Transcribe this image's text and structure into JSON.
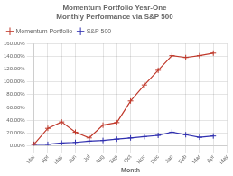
{
  "chart_data": {
    "type": "line",
    "title": "Momentum Portfolio Year-One Monthly Performance via S&P 500",
    "xlabel": "Month",
    "categories": [
      "Mar",
      "Apr",
      "May",
      "Jun",
      "Jul",
      "Aug",
      "Sep",
      "Oct",
      "Nov",
      "Dec",
      "Jan",
      "Feb",
      "Mar",
      "Apr",
      "May"
    ],
    "series": [
      {
        "name": "Momentum Portfolio",
        "color": "#c0392b",
        "marker": "plus",
        "values": [
          2,
          27,
          37,
          21,
          12,
          32,
          36,
          70,
          95,
          118,
          141,
          138,
          141,
          145,
          null
        ]
      },
      {
        "name": "S&P 500",
        "color": "#3030b0",
        "marker": "plus",
        "values": [
          2,
          2,
          4,
          5,
          7,
          8,
          10,
          12,
          14,
          16,
          21,
          17,
          13,
          15,
          null
        ]
      }
    ],
    "ylim": [
      0,
      160
    ],
    "yticks": [
      {
        "value": 0,
        "label": "0.00%"
      },
      {
        "value": 20,
        "label": "20.00%"
      },
      {
        "value": 40,
        "label": "40.00%"
      },
      {
        "value": 60,
        "label": "60.00%"
      },
      {
        "value": 80,
        "label": "80.00%"
      },
      {
        "value": 100,
        "label": "100.00%"
      },
      {
        "value": 120,
        "label": "120.00%"
      },
      {
        "value": 140,
        "label": "140.00%"
      },
      {
        "value": 160,
        "label": "160.00%"
      }
    ],
    "grid": true,
    "legend": "upper left"
  }
}
